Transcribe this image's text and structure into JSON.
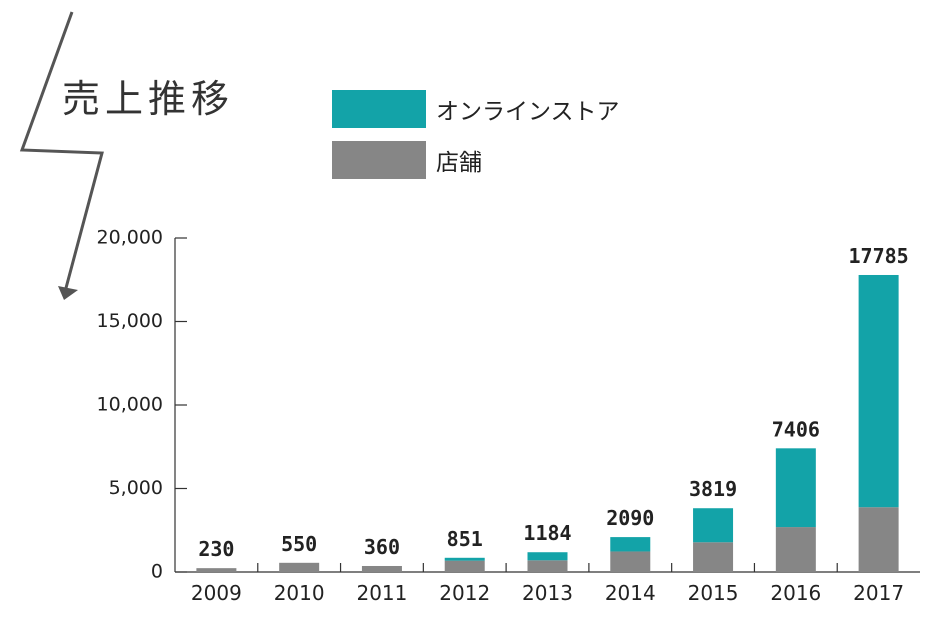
{
  "title": "売上推移",
  "colors": {
    "online": "#13a3a8",
    "store": "#868686",
    "axis": "#333333",
    "arrow": "#555555"
  },
  "chart_data": {
    "type": "bar",
    "stacked": true,
    "categories": [
      "2009",
      "2010",
      "2011",
      "2012",
      "2013",
      "2014",
      "2015",
      "2016",
      "2017"
    ],
    "series": [
      {
        "name": "店舗",
        "values": [
          230,
          550,
          360,
          680,
          700,
          1230,
          1780,
          2690,
          3880
        ]
      },
      {
        "name": "オンラインストア",
        "values": [
          0,
          0,
          0,
          171,
          484,
          860,
          2039,
          4716,
          13905
        ]
      }
    ],
    "totals": [
      "230",
      "550",
      "360",
      "851",
      "1184",
      "2090",
      "3819",
      "7406",
      "17785"
    ],
    "y_ticks": [
      0,
      5000,
      10000,
      15000,
      20000
    ],
    "y_tick_labels": [
      "0",
      "5,000",
      "10,000",
      "15,000",
      "20,000"
    ],
    "ylim": [
      0,
      20000
    ],
    "grid": false,
    "legend_position": "top",
    "xlabel": "",
    "ylabel": ""
  }
}
